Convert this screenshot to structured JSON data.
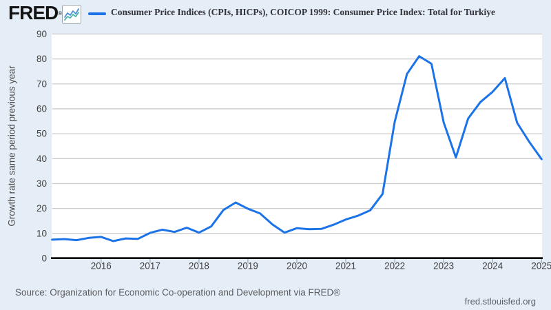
{
  "brand": {
    "logo_text": "FRED",
    "registered_mark": "®",
    "icon": "sparkline-chart-icon",
    "icon_line_colors": [
      "#4a90d9",
      "#45b5a4"
    ]
  },
  "legend": {
    "label": "Consumer Price Indices (CPIs, HICPs), COICOP 1999: Consumer Price Index: Total for Turkiye",
    "marker_color": "#1b73e7"
  },
  "footer": {
    "source": "Source: Organization for Economic Co-operation and Development via FRED®",
    "site": "fred.stlouisfed.org"
  },
  "chart_data": {
    "type": "line",
    "title": "Consumer Price Indices (CPIs, HICPs), COICOP 1999: Consumer Price Index: Total for Turkiye",
    "ylabel": "Growth rate same period previous year",
    "xlabel": "",
    "ylim": [
      0,
      90
    ],
    "xlim": [
      2014.99,
      2025.01
    ],
    "y_ticks": [
      0,
      10,
      20,
      30,
      40,
      50,
      60,
      70,
      80,
      90
    ],
    "x_ticks": [
      {
        "t": 2016,
        "label": "2016"
      },
      {
        "t": 2017,
        "label": "2017"
      },
      {
        "t": 2018,
        "label": "2018"
      },
      {
        "t": 2019,
        "label": "2019"
      },
      {
        "t": 2020,
        "label": "2020"
      },
      {
        "t": 2021,
        "label": "2021"
      },
      {
        "t": 2022,
        "label": "2022"
      },
      {
        "t": 2023,
        "label": "2023"
      },
      {
        "t": 2024,
        "label": "2024"
      },
      {
        "t": 2025,
        "label": "2025"
      }
    ],
    "grid": "horizontal",
    "grid_color": "#cbcbcb",
    "axis_color": "#000000",
    "line_color": "#1b73e7",
    "background_color": "#e5edf6",
    "plot_background_color": "#ffffff",
    "legend_position": "top",
    "series": [
      {
        "name": "Consumer Price Index: Total for Turkiye",
        "frequency": "quarterly",
        "points": [
          {
            "q": "2015 Q1",
            "t": 2015.0,
            "v": 7.5
          },
          {
            "q": "2015 Q2",
            "t": 2015.25,
            "v": 7.7
          },
          {
            "q": "2015 Q3",
            "t": 2015.5,
            "v": 7.3
          },
          {
            "q": "2015 Q4",
            "t": 2015.75,
            "v": 8.2
          },
          {
            "q": "2016 Q1",
            "t": 2016.0,
            "v": 8.6
          },
          {
            "q": "2016 Q2",
            "t": 2016.25,
            "v": 6.9
          },
          {
            "q": "2016 Q3",
            "t": 2016.5,
            "v": 8.0
          },
          {
            "q": "2016 Q4",
            "t": 2016.75,
            "v": 7.8
          },
          {
            "q": "2017 Q1",
            "t": 2017.0,
            "v": 10.2
          },
          {
            "q": "2017 Q2",
            "t": 2017.25,
            "v": 11.5
          },
          {
            "q": "2017 Q3",
            "t": 2017.5,
            "v": 10.6
          },
          {
            "q": "2017 Q4",
            "t": 2017.75,
            "v": 12.3
          },
          {
            "q": "2018 Q1",
            "t": 2018.0,
            "v": 10.3
          },
          {
            "q": "2018 Q2",
            "t": 2018.25,
            "v": 12.8
          },
          {
            "q": "2018 Q3",
            "t": 2018.5,
            "v": 19.4
          },
          {
            "q": "2018 Q4",
            "t": 2018.75,
            "v": 22.4
          },
          {
            "q": "2019 Q1",
            "t": 2019.0,
            "v": 19.9
          },
          {
            "q": "2019 Q2",
            "t": 2019.25,
            "v": 18.0
          },
          {
            "q": "2019 Q3",
            "t": 2019.5,
            "v": 13.6
          },
          {
            "q": "2019 Q4",
            "t": 2019.75,
            "v": 10.3
          },
          {
            "q": "2020 Q1",
            "t": 2020.0,
            "v": 12.1
          },
          {
            "q": "2020 Q2",
            "t": 2020.25,
            "v": 11.7
          },
          {
            "q": "2020 Q3",
            "t": 2020.5,
            "v": 11.8
          },
          {
            "q": "2020 Q4",
            "t": 2020.75,
            "v": 13.5
          },
          {
            "q": "2021 Q1",
            "t": 2021.0,
            "v": 15.6
          },
          {
            "q": "2021 Q2",
            "t": 2021.25,
            "v": 17.1
          },
          {
            "q": "2021 Q3",
            "t": 2021.5,
            "v": 19.3
          },
          {
            "q": "2021 Q4",
            "t": 2021.75,
            "v": 25.8
          },
          {
            "q": "2022 Q1",
            "t": 2022.0,
            "v": 54.8
          },
          {
            "q": "2022 Q2",
            "t": 2022.25,
            "v": 74.0
          },
          {
            "q": "2022 Q3",
            "t": 2022.5,
            "v": 81.1
          },
          {
            "q": "2022 Q4",
            "t": 2022.75,
            "v": 78.1
          },
          {
            "q": "2023 Q1",
            "t": 2023.0,
            "v": 54.5
          },
          {
            "q": "2023 Q2",
            "t": 2023.25,
            "v": 40.5
          },
          {
            "q": "2023 Q3",
            "t": 2023.5,
            "v": 56.1
          },
          {
            "q": "2023 Q4",
            "t": 2023.75,
            "v": 62.7
          },
          {
            "q": "2024 Q1",
            "t": 2024.0,
            "v": 66.8
          },
          {
            "q": "2024 Q2",
            "t": 2024.25,
            "v": 72.3
          },
          {
            "q": "2024 Q3",
            "t": 2024.5,
            "v": 54.4
          },
          {
            "q": "2024 Q4",
            "t": 2024.75,
            "v": 46.7
          },
          {
            "q": "2025 Q1",
            "t": 2025.0,
            "v": 39.8
          }
        ]
      }
    ]
  }
}
